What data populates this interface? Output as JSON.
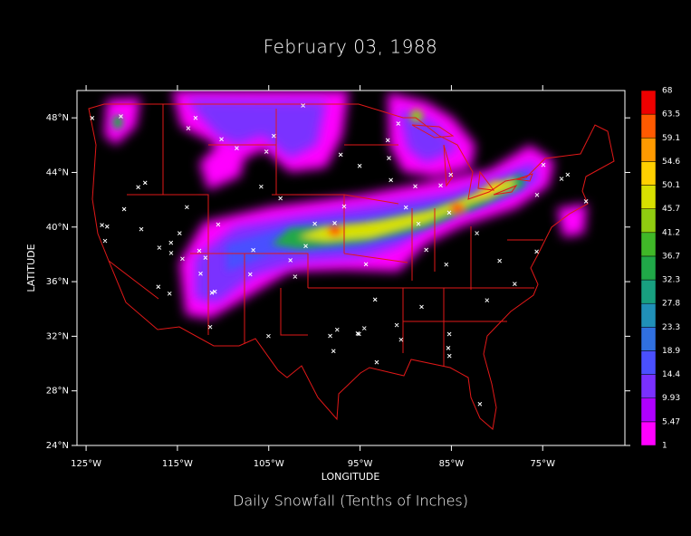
{
  "chart_data": {
    "type": "map",
    "title": "February 03, 1988",
    "subtitle": "Daily Snowfall (Tenths of Inches)",
    "xlabel": "LONGITUDE",
    "ylabel": "LATITUDE",
    "xlim": [
      -126,
      -66
    ],
    "ylim": [
      24,
      50
    ],
    "xticks": [
      {
        "value": -125,
        "label": "125°W"
      },
      {
        "value": -115,
        "label": "115°W"
      },
      {
        "value": -105,
        "label": "105°W"
      },
      {
        "value": -95,
        "label": "95°W"
      },
      {
        "value": -85,
        "label": "85°W"
      },
      {
        "value": -75,
        "label": "75°W"
      }
    ],
    "yticks": [
      {
        "value": 24,
        "label": "24°N"
      },
      {
        "value": 28,
        "label": "28°N"
      },
      {
        "value": 32,
        "label": "32°N"
      },
      {
        "value": 36,
        "label": "36°N"
      },
      {
        "value": 40,
        "label": "40°N"
      },
      {
        "value": 44,
        "label": "44°N"
      },
      {
        "value": 48,
        "label": "48°N"
      }
    ],
    "colorbar": {
      "levels": [
        1,
        5.47,
        9.93,
        14.4,
        18.9,
        23.3,
        27.8,
        32.3,
        36.7,
        41.2,
        45.7,
        50.1,
        54.6,
        59.1,
        63.5,
        68
      ],
      "colors": [
        "#ff00ff",
        "#b000ff",
        "#7a30ff",
        "#4a50ff",
        "#3070e0",
        "#2090b8",
        "#18a080",
        "#20a848",
        "#40b828",
        "#90cc10",
        "#d8e000",
        "#ffd000",
        "#ff9a00",
        "#ff5a00",
        "#ee0000"
      ]
    }
  }
}
